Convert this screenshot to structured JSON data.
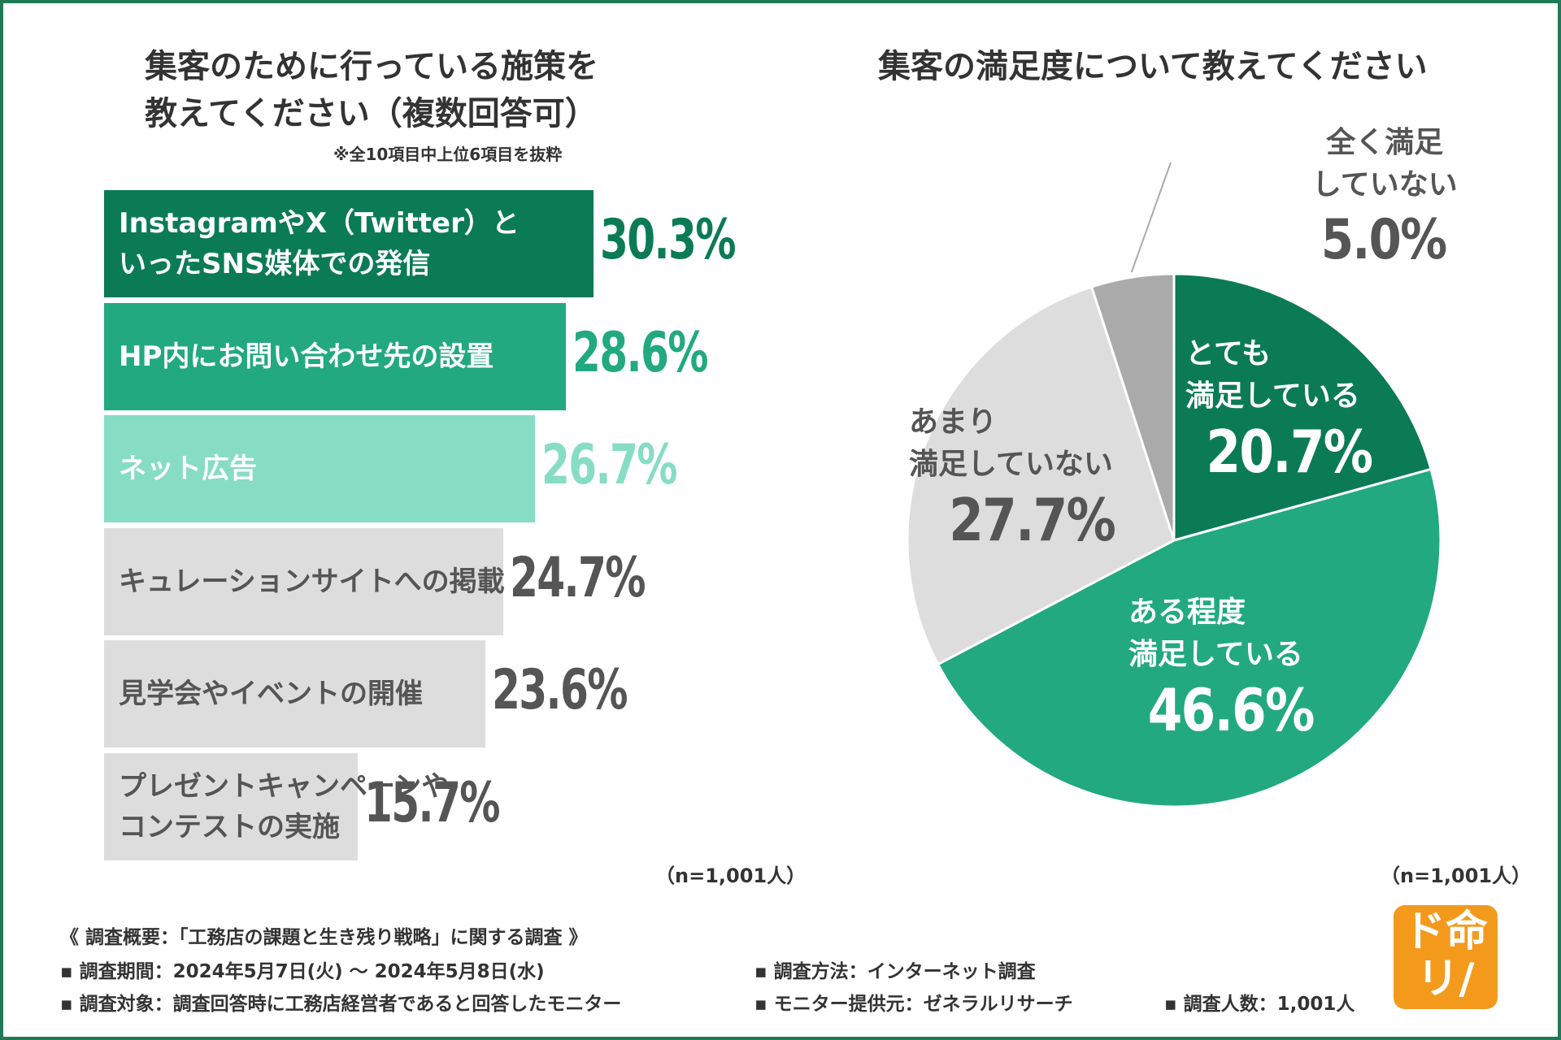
{
  "colors": {
    "dark_green": "#0b7b56",
    "mid_green": "#22a97f",
    "light_green": "#87dcc4",
    "gray": "#dddddd",
    "dark_gray": "#aaaaaa",
    "text_gray": "#555555",
    "frame": "#1f7a55",
    "logo_orange": "#f39a1d"
  },
  "left_chart": {
    "title_line1": "集客のために行っている施策を",
    "title_line2": "教えてください（複数回答可）",
    "note": "※全10項目中上位6項目を抜粋",
    "n_label": "（n=1,001人）"
  },
  "right_chart": {
    "title": "集客の満足度について教えてください",
    "n_label": "（n=1,001人）"
  },
  "chart_data": [
    {
      "type": "bar",
      "orientation": "horizontal",
      "title": "集客のために行っている施策を教えてください（複数回答可）",
      "subtitle": "※全10項目中上位6項目を抜粋",
      "categories": [
        "InstagramやX（Twitter）と\nいったSNS媒体での発信",
        "HP内にお問い合わせ先の設置",
        "ネット広告",
        "キュレーションサイトへの掲載",
        "見学会やイベントの開催",
        "プレゼントキャンペーンや\nコンテストの実施"
      ],
      "values": [
        30.3,
        28.6,
        26.7,
        24.7,
        23.6,
        15.7
      ],
      "value_labels": [
        "30.3%",
        "28.6%",
        "26.7%",
        "24.7%",
        "23.6%",
        "15.7%"
      ],
      "xlim": [
        0,
        30.3
      ],
      "unit": "%",
      "bar_colors": [
        "#0b7b56",
        "#22a97f",
        "#87dcc4",
        "#dddddd",
        "#dddddd",
        "#dddddd"
      ],
      "label_colors": [
        "#ffffff",
        "#ffffff",
        "#ffffff",
        "#555555",
        "#555555",
        "#555555"
      ],
      "value_colors": [
        "#0b7b56",
        "#22a97f",
        "#87dcc4",
        "#555555",
        "#555555",
        "#555555"
      ]
    },
    {
      "type": "pie",
      "title": "集客の満足度について教えてください",
      "slices": [
        {
          "label": "とても\n満足している",
          "value": 20.7,
          "display": "20.7%",
          "color": "#0b7b56",
          "text_color": "#ffffff"
        },
        {
          "label": "ある程度\n満足している",
          "value": 46.6,
          "display": "46.6%",
          "color": "#22a97f",
          "text_color": "#ffffff"
        },
        {
          "label": "あまり\n満足していない",
          "value": 27.7,
          "display": "27.7%",
          "color": "#dddddd",
          "text_color": "#555555"
        },
        {
          "label": "全く満足\nしていない",
          "value": 5.0,
          "display": "5.0%",
          "color": "#aaaaaa",
          "text_color": "#555555"
        }
      ],
      "start": "12 o'clock",
      "direction": "clockwise"
    }
  ],
  "footer": {
    "overview": "《 調査概要：「工務店の課題と生き残り戦略」に関する調査 》",
    "period": "▪ 調査期間：2024年5月7日(火) ～ 2024年5月8日(水)",
    "method": "▪ 調査方法：インターネット調査",
    "target": "▪ 調査対象：調査回答時に工務店経営者であると回答したモニター",
    "provider": "▪ モニター提供元：ゼネラルリサーチ",
    "count": "▪ 調査人数：1,001人"
  },
  "logo": {
    "line1": "ド命",
    "line2": "リ/"
  }
}
